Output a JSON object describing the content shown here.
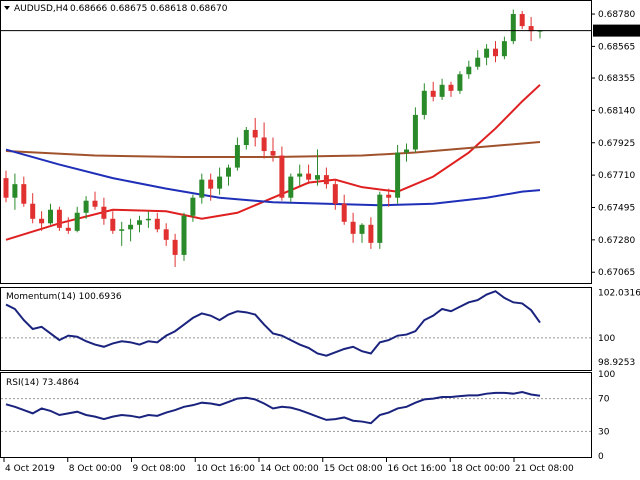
{
  "header": {
    "symbol": "AUDUSD,H4",
    "ohlc": "0.68666 0.68675 0.68618 0.68670"
  },
  "momentum_header": "Momentum(14) 100.6936",
  "rsi_header": "RSI(14) 73.4864",
  "last_price": "0.68670",
  "colors": {
    "bull": "#2a8a2a",
    "bear": "#e03030",
    "sma_fast": "#e02020",
    "sma_mid": "#a0522d",
    "sma_slow": "#1f2fb8",
    "indicator": "#1a237e",
    "price_label_bg": "#000000",
    "price_label_fg": "#ffffff"
  },
  "chart_data": [
    {
      "type": "candlestick",
      "panel": "price",
      "ylim": [
        0.67,
        0.6886
      ],
      "y_ticks": [
        "0.68780",
        "0.68565",
        "0.68355",
        "0.68140",
        "0.67925",
        "0.67710",
        "0.67495",
        "0.67280",
        "0.67065"
      ],
      "x_ticks": [
        "4 Oct 2019",
        "8 Oct 00:00",
        "9 Oct 08:00",
        "10 Oct 16:00",
        "14 Oct 00:00",
        "15 Oct 08:00",
        "16 Oct 16:00",
        "18 Oct 00:00",
        "21 Oct 08:00"
      ],
      "candles": [
        [
          0.6769,
          0.6774,
          0.6753,
          0.6756
        ],
        [
          0.6756,
          0.6772,
          0.6748,
          0.6765
        ],
        [
          0.6765,
          0.677,
          0.675,
          0.6752
        ],
        [
          0.6752,
          0.6759,
          0.6739,
          0.6742
        ],
        [
          0.6742,
          0.6747,
          0.6734,
          0.6739
        ],
        [
          0.6739,
          0.6752,
          0.6738,
          0.6748
        ],
        [
          0.6748,
          0.675,
          0.6734,
          0.6736
        ],
        [
          0.6736,
          0.6743,
          0.6732,
          0.6734
        ],
        [
          0.6734,
          0.675,
          0.6733,
          0.6746
        ],
        [
          0.6746,
          0.6757,
          0.6742,
          0.6754
        ],
        [
          0.6754,
          0.676,
          0.6748,
          0.675
        ],
        [
          0.675,
          0.6756,
          0.6738,
          0.6742
        ],
        [
          0.6742,
          0.6747,
          0.6732,
          0.6734
        ],
        [
          0.6734,
          0.674,
          0.6724,
          0.6735
        ],
        [
          0.6735,
          0.6742,
          0.6727,
          0.6738
        ],
        [
          0.6738,
          0.6744,
          0.6733,
          0.6741
        ],
        [
          0.6741,
          0.6747,
          0.6736,
          0.6742
        ],
        [
          0.6742,
          0.6746,
          0.6733,
          0.6735
        ],
        [
          0.6735,
          0.6739,
          0.6724,
          0.6728
        ],
        [
          0.6728,
          0.6732,
          0.671,
          0.6718
        ],
        [
          0.6718,
          0.6746,
          0.6714,
          0.6744
        ],
        [
          0.6744,
          0.6758,
          0.674,
          0.6756
        ],
        [
          0.6756,
          0.6772,
          0.6752,
          0.6768
        ],
        [
          0.6768,
          0.6772,
          0.6754,
          0.6762
        ],
        [
          0.6762,
          0.6776,
          0.6758,
          0.677
        ],
        [
          0.677,
          0.6778,
          0.6764,
          0.6776
        ],
        [
          0.6776,
          0.6796,
          0.6774,
          0.6791
        ],
        [
          0.6791,
          0.6803,
          0.6788,
          0.6801
        ],
        [
          0.6801,
          0.6809,
          0.679,
          0.6796
        ],
        [
          0.6796,
          0.6806,
          0.6782,
          0.6787
        ],
        [
          0.6787,
          0.6796,
          0.678,
          0.6784
        ],
        [
          0.6784,
          0.679,
          0.6754,
          0.6756
        ],
        [
          0.6756,
          0.6772,
          0.6753,
          0.677
        ],
        [
          0.677,
          0.6778,
          0.6764,
          0.6772
        ],
        [
          0.6772,
          0.6778,
          0.6765,
          0.6768
        ],
        [
          0.6768,
          0.6788,
          0.6764,
          0.6771
        ],
        [
          0.6771,
          0.6776,
          0.6762,
          0.6765
        ],
        [
          0.6765,
          0.6768,
          0.6748,
          0.6752
        ],
        [
          0.6752,
          0.6758,
          0.6738,
          0.674
        ],
        [
          0.674,
          0.6746,
          0.6726,
          0.6732
        ],
        [
          0.6732,
          0.6739,
          0.6726,
          0.6738
        ],
        [
          0.6738,
          0.6743,
          0.6722,
          0.6726
        ],
        [
          0.6726,
          0.676,
          0.6722,
          0.6758
        ],
        [
          0.6758,
          0.6762,
          0.675,
          0.6756
        ],
        [
          0.6756,
          0.6791,
          0.6752,
          0.6786
        ],
        [
          0.6786,
          0.6792,
          0.678,
          0.6788
        ],
        [
          0.6788,
          0.6816,
          0.6786,
          0.6811
        ],
        [
          0.6811,
          0.6832,
          0.6808,
          0.6827
        ],
        [
          0.6827,
          0.6833,
          0.682,
          0.6823
        ],
        [
          0.6823,
          0.6835,
          0.6821,
          0.6831
        ],
        [
          0.6831,
          0.6833,
          0.6823,
          0.6827
        ],
        [
          0.6827,
          0.684,
          0.6825,
          0.6838
        ],
        [
          0.6838,
          0.6847,
          0.6835,
          0.6843
        ],
        [
          0.6843,
          0.6854,
          0.6841,
          0.6849
        ],
        [
          0.6849,
          0.6858,
          0.6844,
          0.6855
        ],
        [
          0.6855,
          0.686,
          0.6846,
          0.685
        ],
        [
          0.685,
          0.6863,
          0.6848,
          0.686
        ],
        [
          0.686,
          0.6881,
          0.6858,
          0.6878
        ],
        [
          0.6878,
          0.688,
          0.6868,
          0.687
        ],
        [
          0.687,
          0.6876,
          0.686,
          0.68666
        ],
        [
          0.68666,
          0.68675,
          0.68618,
          0.6867
        ]
      ],
      "series": [
        {
          "name": "sma_fast",
          "color": "#e02020",
          "values": [
            [
              0,
              67280
            ],
            [
              6,
              67390
            ],
            [
              12,
              67480
            ],
            [
              18,
              67470
            ],
            [
              22,
              67420
            ],
            [
              26,
              67460
            ],
            [
              30,
              67560
            ],
            [
              34,
              67660
            ],
            [
              37,
              67680
            ],
            [
              40,
              67630
            ],
            [
              44,
              67600
            ],
            [
              48,
              67700
            ],
            [
              52,
              67860
            ],
            [
              55,
              68020
            ],
            [
              58,
              68200
            ],
            [
              60,
              68310
            ]
          ]
        },
        {
          "name": "sma_mid",
          "color": "#a0522d",
          "values": [
            [
              0,
              67870
            ],
            [
              10,
              67840
            ],
            [
              20,
              67830
            ],
            [
              30,
              67830
            ],
            [
              40,
              67840
            ],
            [
              46,
              67860
            ],
            [
              52,
              67890
            ],
            [
              56,
              67910
            ],
            [
              60,
              67930
            ]
          ]
        },
        {
          "name": "sma_slow",
          "color": "#1f2fb8",
          "values": [
            [
              0,
              67880
            ],
            [
              6,
              67780
            ],
            [
              12,
              67690
            ],
            [
              18,
              67620
            ],
            [
              24,
              67560
            ],
            [
              30,
              67530
            ],
            [
              36,
              67520
            ],
            [
              42,
              67510
            ],
            [
              48,
              67520
            ],
            [
              54,
              67560
            ],
            [
              58,
              67600
            ],
            [
              60,
              67610
            ]
          ]
        }
      ]
    },
    {
      "type": "line",
      "panel": "momentum",
      "ylim": [
        98.6,
        102.2
      ],
      "y_ticks": [
        "102.0316",
        "100",
        "98.9253"
      ],
      "series": [
        {
          "name": "Momentum(14)",
          "color": "#1a237e",
          "values": [
            101.5,
            101.3,
            100.8,
            100.4,
            100.5,
            100.2,
            99.9,
            100.1,
            100.05,
            99.85,
            99.7,
            99.6,
            99.75,
            99.85,
            99.8,
            99.7,
            99.85,
            99.8,
            100.1,
            100.3,
            100.6,
            100.9,
            101.1,
            101.0,
            100.8,
            101.05,
            101.2,
            101.15,
            101.05,
            100.6,
            100.2,
            100.1,
            99.9,
            99.7,
            99.55,
            99.3,
            99.2,
            99.35,
            99.5,
            99.6,
            99.4,
            99.3,
            99.8,
            99.9,
            100.1,
            100.15,
            100.3,
            100.8,
            101.0,
            101.3,
            101.2,
            101.4,
            101.6,
            101.7,
            101.95,
            102.1,
            101.8,
            101.6,
            101.55,
            101.25,
            100.69
          ]
        }
      ]
    },
    {
      "type": "line",
      "panel": "rsi",
      "ylim": [
        0,
        100
      ],
      "y_ticks": [
        "100",
        "70",
        "30",
        "0"
      ],
      "levels": [
        70,
        30
      ],
      "series": [
        {
          "name": "RSI(14)",
          "color": "#1a237e",
          "values": [
            63,
            60,
            56,
            52,
            58,
            55,
            50,
            52,
            54,
            50,
            48,
            45,
            48,
            50,
            49,
            47,
            50,
            49,
            53,
            56,
            60,
            62,
            65,
            64,
            62,
            66,
            70,
            71,
            69,
            64,
            58,
            60,
            59,
            56,
            52,
            48,
            44,
            45,
            47,
            43,
            42,
            40,
            50,
            53,
            58,
            60,
            65,
            69,
            70,
            72,
            72,
            73,
            74,
            74,
            76,
            77,
            77,
            76,
            78,
            75,
            73.49
          ]
        }
      ]
    }
  ]
}
